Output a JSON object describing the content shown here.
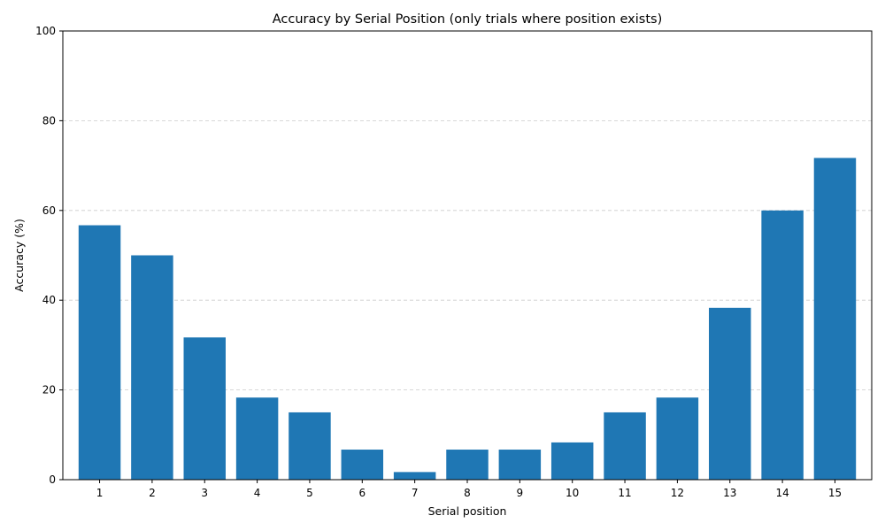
{
  "chart_data": {
    "type": "bar",
    "title": "Accuracy by Serial Position (only trials where position exists)",
    "xlabel": "Serial position",
    "ylabel": "Accuracy (%)",
    "categories": [
      "1",
      "2",
      "3",
      "4",
      "5",
      "6",
      "7",
      "8",
      "9",
      "10",
      "11",
      "12",
      "13",
      "14",
      "15"
    ],
    "values": [
      56.7,
      50.0,
      31.7,
      18.3,
      15.0,
      6.7,
      1.7,
      6.7,
      6.7,
      8.3,
      15.0,
      18.3,
      38.3,
      60.0,
      71.7
    ],
    "ylim": [
      0,
      100
    ],
    "yticks": [
      "0",
      "20",
      "40",
      "60",
      "80",
      "100"
    ],
    "grid": "y-dashed",
    "bar_color": "#1f77b4",
    "legend": "none"
  }
}
